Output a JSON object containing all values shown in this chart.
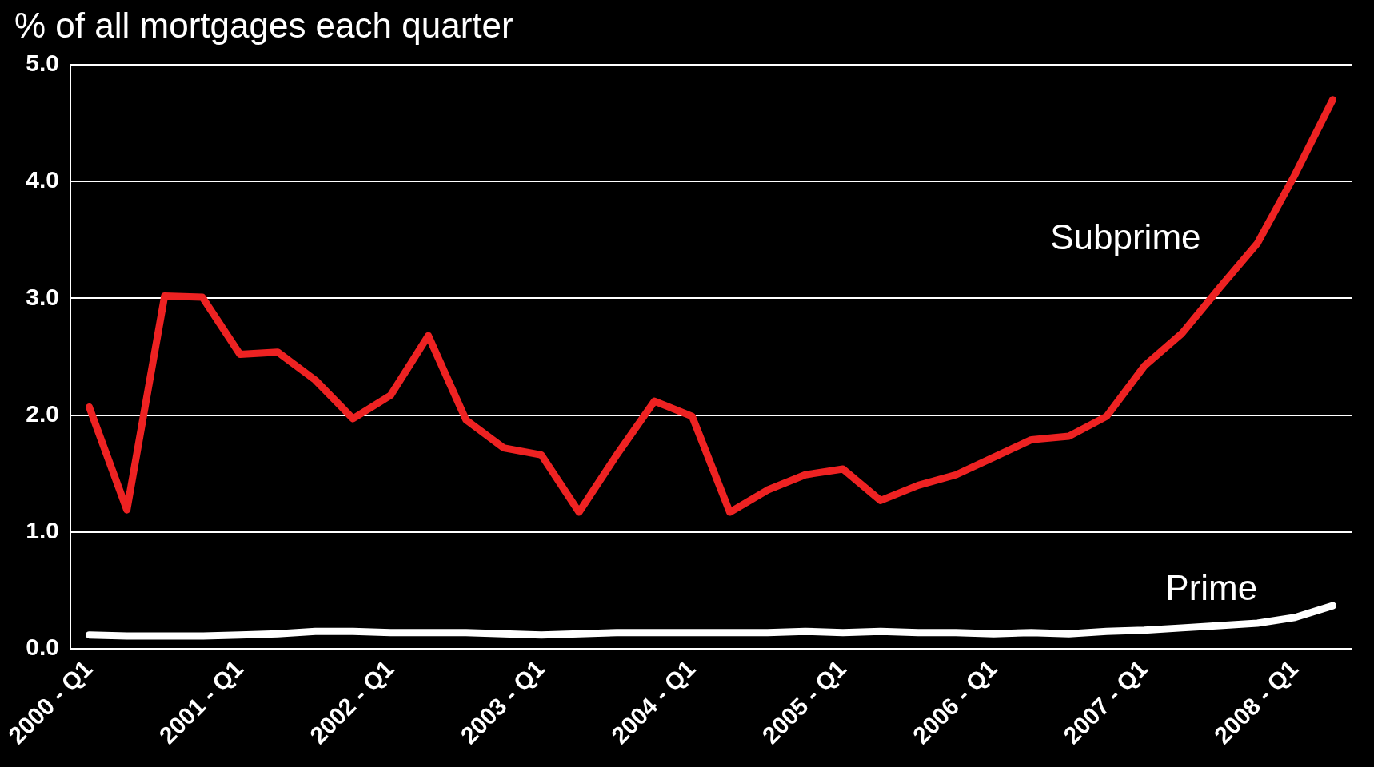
{
  "chart_data": {
    "type": "line",
    "title": "% of all mortgages each quarter",
    "categories": [
      "2000 - Q1",
      null,
      null,
      null,
      "2001 - Q1",
      null,
      null,
      null,
      "2002 - Q1",
      null,
      null,
      null,
      "2003 - Q1",
      null,
      null,
      null,
      "2004 - Q1",
      null,
      null,
      null,
      "2005 - Q1",
      null,
      null,
      null,
      "2006 - Q1",
      null,
      null,
      null,
      "2007 - Q1",
      null,
      null,
      null,
      "2008 - Q1",
      null
    ],
    "series": [
      {
        "name": "Subprime",
        "color": "#ee2222",
        "values": [
          2.07,
          1.19,
          3.02,
          3.01,
          2.52,
          2.54,
          2.3,
          1.97,
          2.17,
          2.68,
          1.96,
          1.72,
          1.66,
          1.17,
          1.66,
          2.12,
          1.99,
          1.17,
          1.36,
          1.49,
          1.54,
          1.27,
          1.4,
          1.49,
          1.64,
          1.79,
          1.82,
          1.99,
          2.42,
          2.7,
          3.09,
          3.47,
          4.06,
          4.7
        ]
      },
      {
        "name": "Prime",
        "color": "#ffffff",
        "values": [
          0.12,
          0.11,
          0.11,
          0.11,
          0.12,
          0.13,
          0.15,
          0.15,
          0.14,
          0.14,
          0.14,
          0.13,
          0.12,
          0.13,
          0.14,
          0.14,
          0.14,
          0.14,
          0.14,
          0.15,
          0.14,
          0.15,
          0.14,
          0.14,
          0.13,
          0.14,
          0.13,
          0.15,
          0.16,
          0.18,
          0.2,
          0.22,
          0.27,
          0.37
        ]
      }
    ],
    "ylim": [
      0,
      5
    ],
    "yticks": [
      {
        "value": 0,
        "label": "0.0"
      },
      {
        "value": 1,
        "label": "1.0"
      },
      {
        "value": 2,
        "label": "2.0"
      },
      {
        "value": 3,
        "label": "3.0"
      },
      {
        "value": 4,
        "label": "4.0"
      },
      {
        "value": 5,
        "label": "5.0"
      }
    ],
    "grid": "y",
    "legend": false,
    "marker": "none",
    "line_style": "solid"
  }
}
